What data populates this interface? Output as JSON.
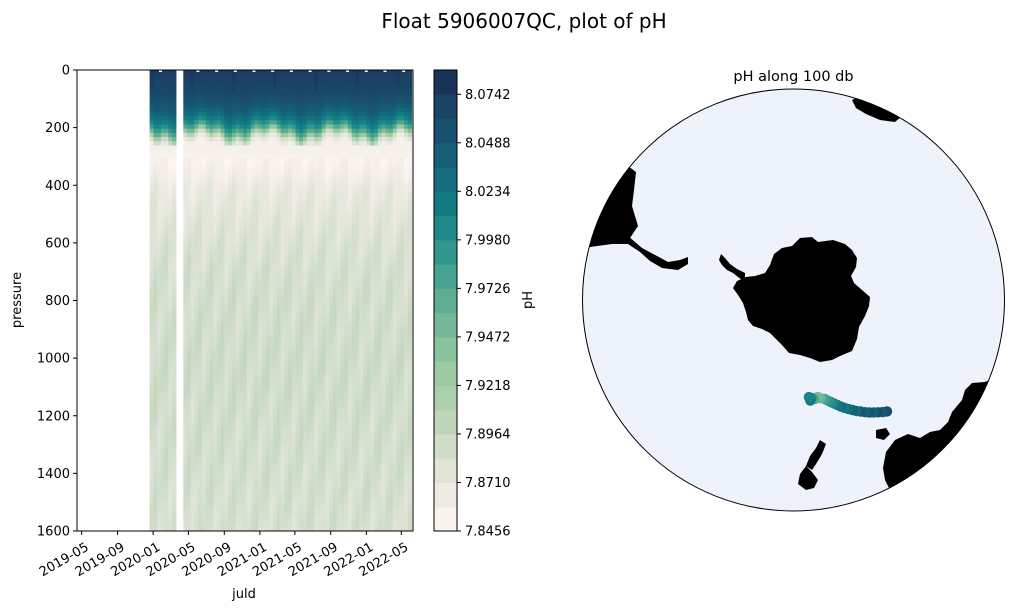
{
  "figure": {
    "title": "Float 5906007QC, plot of pH"
  },
  "chart_data": [
    {
      "type": "heatmap",
      "name": "section",
      "xlabel": "juld",
      "ylabel": "pressure",
      "x_ticks": [
        "2019-05",
        "2019-09",
        "2020-01",
        "2020-05",
        "2020-09",
        "2021-01",
        "2021-05",
        "2021-09",
        "2022-01",
        "2022-05"
      ],
      "y_ticks": [
        0,
        200,
        400,
        600,
        800,
        1000,
        1200,
        1400,
        1600
      ],
      "ylim": [
        1600,
        0
      ],
      "xlim": [
        "2019-04-15",
        "2022-06-10"
      ],
      "data_start": "2019-12-20",
      "data_end": "2022-06-05",
      "gap": [
        "2020-03-25",
        "2020-04-12"
      ],
      "profile_depths": [
        0,
        25,
        50,
        75,
        100,
        125,
        150,
        175,
        200,
        225,
        250,
        300,
        350,
        400,
        500,
        600,
        700,
        800,
        900,
        1000,
        1100,
        1200,
        1300,
        1400,
        1500,
        1600
      ],
      "mean_profile_ph": [
        8.072,
        8.069,
        8.066,
        8.062,
        8.056,
        8.046,
        8.03,
        8.008,
        7.968,
        7.892,
        7.858,
        7.852,
        7.858,
        7.868,
        7.876,
        7.882,
        7.886,
        7.888,
        7.889,
        7.89,
        7.89,
        7.889,
        7.888,
        7.887,
        7.886,
        7.885
      ]
    },
    {
      "type": "colorbar",
      "name": "colorbar",
      "label": "pH",
      "min": 7.8456,
      "max": 8.0869,
      "ticks": [
        "7.8456",
        "7.8710",
        "7.8964",
        "7.9218",
        "7.9472",
        "7.9726",
        "7.9980",
        "8.0234",
        "8.0488",
        "8.0742"
      ]
    },
    {
      "type": "scatter",
      "name": "map",
      "title": "pH along 100 db",
      "projection": "south-polar-stereographic",
      "points": [
        {
          "lon": 140.0,
          "lat": -46.6,
          "ph": 8.06
        },
        {
          "lon": 141.5,
          "lat": -47.2,
          "ph": 8.05
        },
        {
          "lon": 143.0,
          "lat": -47.9,
          "ph": 8.06
        },
        {
          "lon": 144.5,
          "lat": -48.6,
          "ph": 8.04
        },
        {
          "lon": 146.0,
          "lat": -49.3,
          "ph": 8.05
        },
        {
          "lon": 147.5,
          "lat": -50.0,
          "ph": 8.04
        },
        {
          "lon": 149.0,
          "lat": -50.8,
          "ph": 8.05
        },
        {
          "lon": 150.4,
          "lat": -51.5,
          "ph": 8.03
        },
        {
          "lon": 151.8,
          "lat": -52.3,
          "ph": 8.04
        },
        {
          "lon": 153.2,
          "lat": -53.0,
          "ph": 8.03
        },
        {
          "lon": 154.6,
          "lat": -53.8,
          "ph": 8.02
        },
        {
          "lon": 156.0,
          "lat": -54.6,
          "ph": 8.03
        },
        {
          "lon": 157.3,
          "lat": -55.4,
          "ph": 8.02
        },
        {
          "lon": 158.6,
          "lat": -56.2,
          "ph": 8.01
        },
        {
          "lon": 159.9,
          "lat": -56.9,
          "ph": 8.0
        },
        {
          "lon": 161.2,
          "lat": -57.6,
          "ph": 7.99
        },
        {
          "lon": 162.5,
          "lat": -58.3,
          "ph": 7.98
        },
        {
          "lon": 164.5,
          "lat": -58.8,
          "ph": 7.96
        },
        {
          "lon": 166.0,
          "lat": -59.4,
          "ph": 7.95
        },
        {
          "lon": 168.0,
          "lat": -59.0,
          "ph": 7.97
        },
        {
          "lon": 169.5,
          "lat": -59.5,
          "ph": 8.0
        },
        {
          "lon": 170.5,
          "lat": -58.8,
          "ph": 8.02
        },
        {
          "lon": 171.0,
          "lat": -59.9,
          "ph": 8.01
        }
      ]
    }
  ],
  "colors": {
    "ocean": "#edf2fb",
    "land": "#000000",
    "colormap": [
      "#fdf6f2",
      "#f1ece5",
      "#dde4d6",
      "#c6d8c0",
      "#aed0ad",
      "#97c8a0",
      "#7cbc98",
      "#5fae93",
      "#3f9f8e",
      "#218d89",
      "#127a82",
      "#13677b",
      "#175471",
      "#1b4163",
      "#1a2d50"
    ]
  }
}
